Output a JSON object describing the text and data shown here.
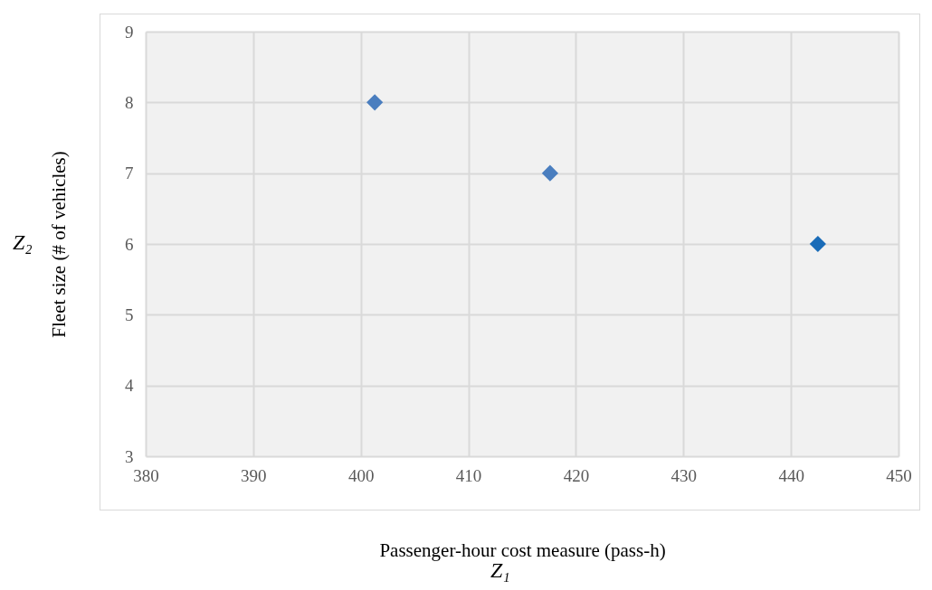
{
  "chart_data": {
    "type": "scatter",
    "xlabel": "Passenger-hour cost measure (pass-h)",
    "ylabel": "Fleet size (# of vehicles)",
    "annotations": [
      "Z₂",
      "Z₁"
    ],
    "x": [
      401.3,
      417.6,
      442.5
    ],
    "values": [
      8,
      7,
      6
    ],
    "colors": [
      "#4a7ebf",
      "#4a7ebf",
      "#1a6cb8"
    ],
    "marker": "diamond",
    "xlim": [
      380,
      450
    ],
    "xticks": [
      380,
      390,
      400,
      410,
      420,
      430,
      440,
      450
    ],
    "ylim": [
      3,
      9
    ],
    "yticks": [
      3,
      4,
      5,
      6,
      7,
      8,
      9
    ],
    "grid": true
  }
}
